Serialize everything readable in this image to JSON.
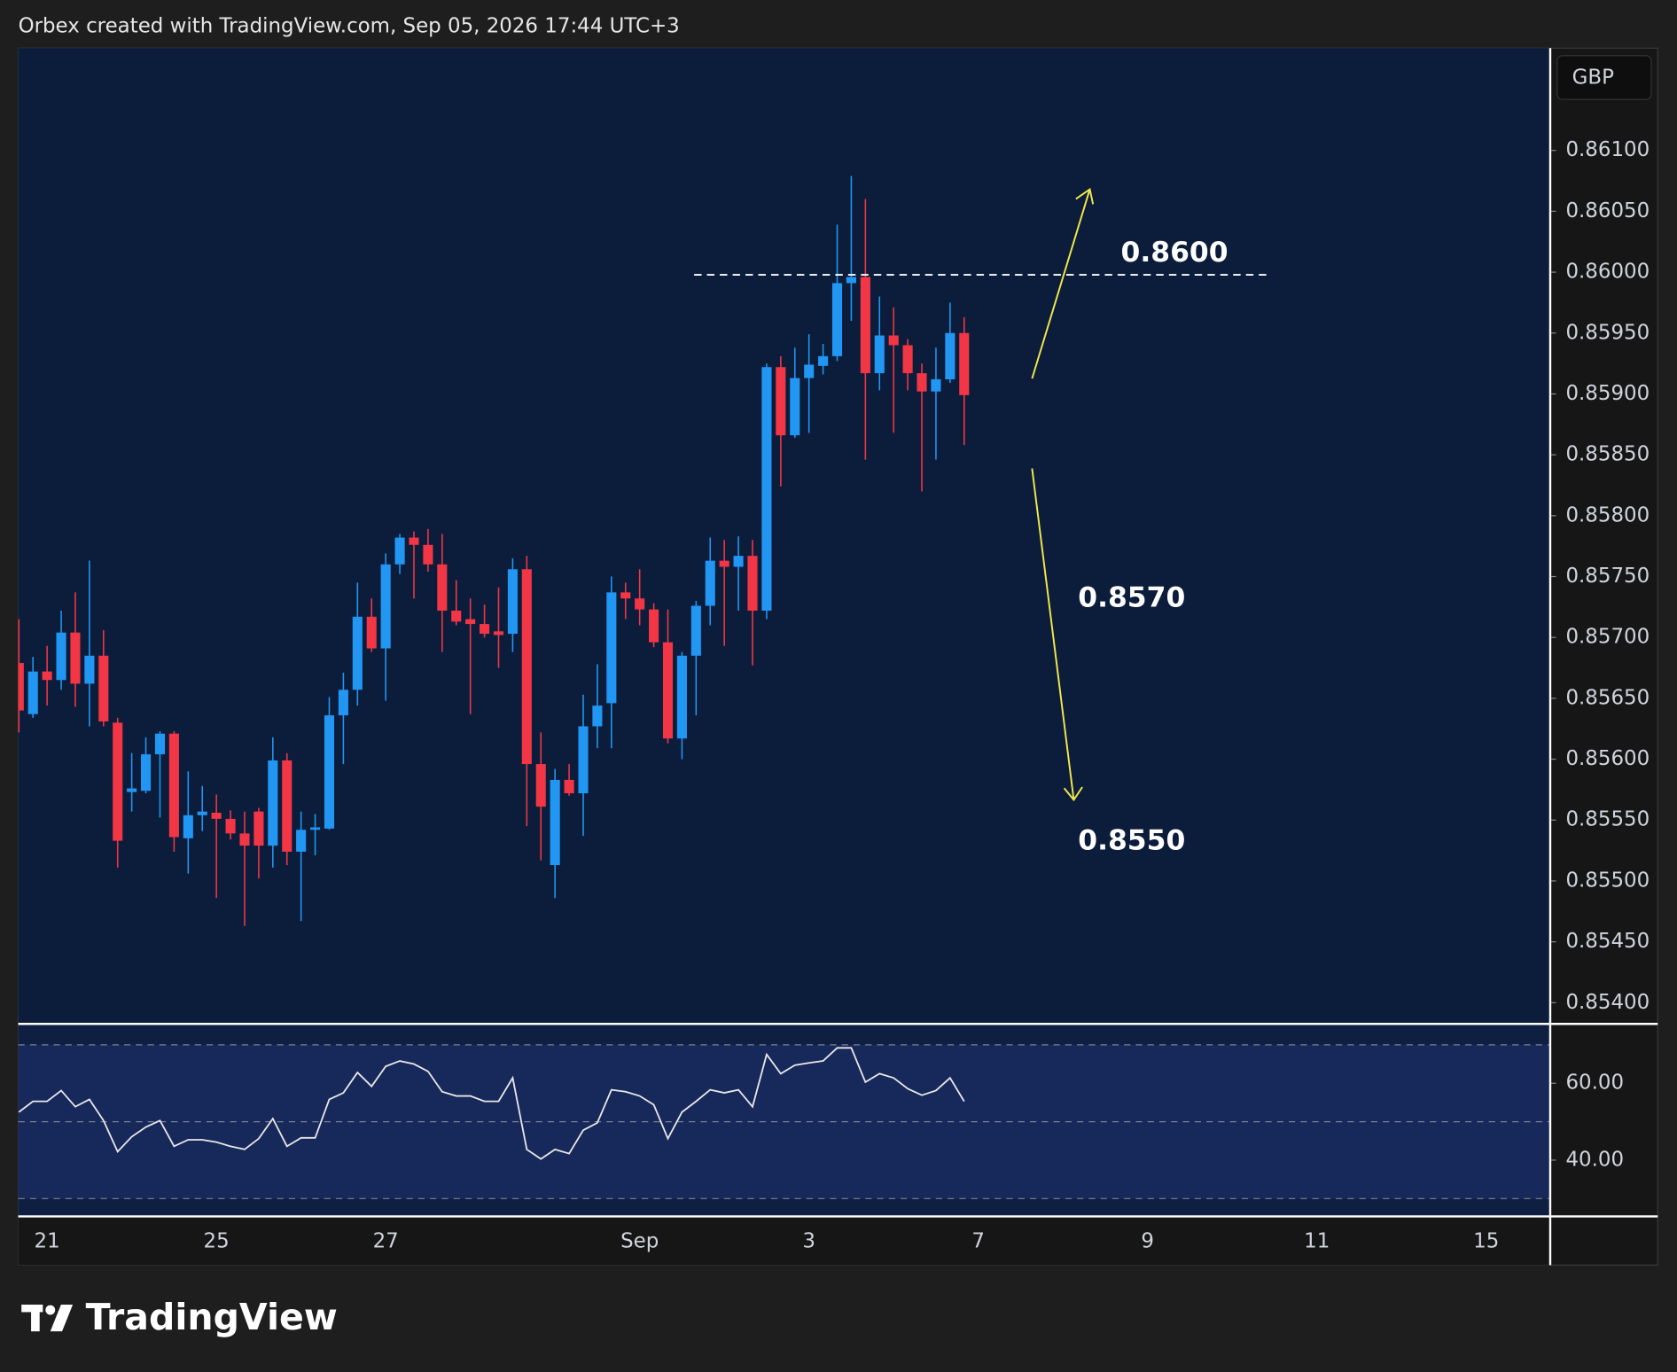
{
  "header": "Orbex created with TradingView.com, Sep 05, 2026 17:44 UTC+3",
  "logo": "TradingView",
  "chart_data": [
    {
      "type": "candlestick",
      "currency": "GBP",
      "categories": [
        null,
        null,
        "21",
        null,
        null,
        null,
        null,
        null,
        null,
        null,
        null,
        null,
        null,
        null,
        "25",
        null,
        null,
        null,
        null,
        null,
        null,
        null,
        null,
        null,
        null,
        null,
        "27",
        null,
        null,
        null,
        null,
        null,
        null,
        null,
        null,
        null,
        null,
        null,
        null,
        null,
        null,
        null,
        null,
        null,
        "Sep",
        null,
        null,
        null,
        null,
        null,
        null,
        null,
        null,
        null,
        null,
        null,
        "3",
        null,
        null,
        null,
        null,
        null,
        null,
        null,
        null,
        null,
        null,
        null,
        "7",
        null,
        null,
        null,
        null,
        null,
        null,
        null,
        null,
        null,
        null,
        null,
        "9",
        null,
        null,
        null,
        null,
        null,
        null,
        null,
        null,
        null,
        null,
        null,
        "11",
        null,
        null,
        null,
        null,
        null,
        null,
        null,
        null,
        null,
        null,
        null,
        "15",
        null,
        null,
        null,
        null
      ],
      "open": [
        0.85679,
        0.85637,
        0.85672,
        0.85665,
        0.85704,
        0.85662,
        0.85685,
        0.8563,
        0.85573,
        0.85574,
        0.85604,
        0.85621,
        0.85535,
        0.85554,
        0.85556,
        0.85551,
        0.85539,
        0.85557,
        0.85529,
        0.85599,
        0.85524,
        0.85542,
        0.85543,
        0.85636,
        0.85657,
        0.85717,
        0.85691,
        0.8576,
        0.85782,
        0.85776,
        0.8576,
        0.85722,
        0.85715,
        0.85711,
        0.85705,
        0.85703,
        0.85756,
        0.85596,
        0.85513,
        0.85583,
        0.85572,
        0.85627,
        0.85646,
        0.85737,
        0.85732,
        0.85723,
        0.85696,
        0.85617,
        0.85685,
        0.85726,
        0.85763,
        0.85758,
        0.85767,
        0.85722,
        0.85922,
        0.85866,
        0.85913,
        0.85923,
        0.85931,
        0.85991,
        0.85996,
        0.85917,
        0.85948,
        0.8594,
        0.85917,
        0.85902,
        0.85912,
        0.8595,
        null,
        null,
        null,
        null,
        null,
        null,
        null,
        null,
        null,
        null,
        null,
        null,
        null,
        null,
        null,
        null,
        null,
        null,
        null,
        null,
        null,
        null,
        null,
        null,
        null,
        null,
        null,
        null,
        null,
        null,
        null,
        null,
        null,
        null,
        null,
        null,
        null,
        null,
        null,
        null,
        null
      ],
      "high": [
        0.85715,
        0.85684,
        0.85693,
        0.85722,
        0.85737,
        0.85763,
        0.85706,
        0.85634,
        0.85605,
        0.85618,
        0.85623,
        0.85623,
        0.8559,
        0.85578,
        0.85571,
        0.85558,
        0.85557,
        0.8556,
        0.85618,
        0.85605,
        0.85557,
        0.85555,
        0.85651,
        0.85671,
        0.85745,
        0.85732,
        0.85769,
        0.85785,
        0.85787,
        0.85789,
        0.85785,
        0.85747,
        0.85732,
        0.85727,
        0.85741,
        0.85765,
        0.85767,
        0.85622,
        0.85592,
        0.85596,
        0.85653,
        0.85678,
        0.8575,
        0.85745,
        0.85756,
        0.85728,
        0.85723,
        0.85688,
        0.8573,
        0.85782,
        0.8578,
        0.85783,
        0.8578,
        0.85925,
        0.85931,
        0.85938,
        0.85949,
        0.85941,
        0.86039,
        0.86079,
        0.8606,
        0.8598,
        0.85971,
        0.85945,
        0.85925,
        0.85938,
        0.85975,
        0.85963,
        null,
        null,
        null,
        null,
        null,
        null,
        null,
        null,
        null,
        null,
        null,
        null,
        null,
        null,
        null,
        null,
        null,
        null,
        null,
        null,
        null,
        null,
        null,
        null,
        null,
        null,
        null,
        null,
        null,
        null,
        null,
        null,
        null,
        null,
        null,
        null,
        null,
        null,
        null,
        null,
        null
      ],
      "low": [
        0.85622,
        0.85634,
        0.85644,
        0.85657,
        0.85643,
        0.85627,
        0.85627,
        0.85511,
        0.85557,
        0.85572,
        0.85552,
        0.85524,
        0.85506,
        0.85541,
        0.85486,
        0.85534,
        0.85463,
        0.85502,
        0.85511,
        0.85513,
        0.85467,
        0.85521,
        0.85542,
        0.85596,
        0.85644,
        0.85688,
        0.85648,
        0.85752,
        0.85732,
        0.85754,
        0.85688,
        0.8571,
        0.85637,
        0.857,
        0.85675,
        0.85688,
        0.85545,
        0.85517,
        0.85486,
        0.8557,
        0.85537,
        0.85609,
        0.85609,
        0.85715,
        0.8571,
        0.85692,
        0.85613,
        0.856,
        0.85636,
        0.8571,
        0.85693,
        0.85722,
        0.85677,
        0.85715,
        0.85824,
        0.85864,
        0.85868,
        0.85916,
        0.85927,
        0.8596,
        0.85846,
        0.85903,
        0.85868,
        0.85903,
        0.8582,
        0.85846,
        0.85909,
        0.85858,
        null,
        null,
        null,
        null,
        null,
        null,
        null,
        null,
        null,
        null,
        null,
        null,
        null,
        null,
        null,
        null,
        null,
        null,
        null,
        null,
        null,
        null,
        null,
        null,
        null,
        null,
        null,
        null,
        null,
        null,
        null,
        null,
        null,
        null,
        null,
        null,
        null,
        null,
        null,
        null,
        null
      ],
      "close": [
        0.8564,
        0.85672,
        0.85665,
        0.85704,
        0.85662,
        0.85685,
        0.85631,
        0.85533,
        0.85576,
        0.85604,
        0.85621,
        0.85536,
        0.85554,
        0.85557,
        0.85551,
        0.85539,
        0.85529,
        0.85529,
        0.85599,
        0.85524,
        0.85542,
        0.85544,
        0.85636,
        0.85657,
        0.85717,
        0.85691,
        0.8576,
        0.85782,
        0.85776,
        0.8576,
        0.85722,
        0.85713,
        0.85711,
        0.85703,
        0.85702,
        0.85756,
        0.85596,
        0.85561,
        0.85583,
        0.85572,
        0.85627,
        0.85644,
        0.85737,
        0.85732,
        0.85723,
        0.85696,
        0.85617,
        0.85685,
        0.85726,
        0.85763,
        0.85758,
        0.85767,
        0.85722,
        0.85922,
        0.85866,
        0.85913,
        0.85924,
        0.85931,
        0.85991,
        0.85996,
        0.85917,
        0.85948,
        0.8594,
        0.85917,
        0.85902,
        0.85912,
        0.8595,
        0.85899,
        null,
        null,
        null,
        null,
        null,
        null,
        null,
        null,
        null,
        null,
        null,
        null,
        null,
        null,
        null,
        null,
        null,
        null,
        null,
        null,
        null,
        null,
        null,
        null,
        null,
        null,
        null,
        null,
        null,
        null,
        null,
        null,
        null,
        null,
        null,
        null,
        null,
        null,
        null,
        null,
        null
      ],
      "up_color": "#2196f3",
      "down_color": "#f23645",
      "ylim": [
        0.85383,
        0.86184
      ],
      "yticks": [
        {
          "value": 0.861,
          "label": "0.86100"
        },
        {
          "value": 0.8605,
          "label": "0.86050"
        },
        {
          "value": 0.86,
          "label": "0.86000"
        },
        {
          "value": 0.8595,
          "label": "0.85950"
        },
        {
          "value": 0.859,
          "label": "0.85900"
        },
        {
          "value": 0.8585,
          "label": "0.85850"
        },
        {
          "value": 0.858,
          "label": "0.85800"
        },
        {
          "value": 0.8575,
          "label": "0.85750"
        },
        {
          "value": 0.857,
          "label": "0.85700"
        },
        {
          "value": 0.8565,
          "label": "0.85650"
        },
        {
          "value": 0.856,
          "label": "0.85600"
        },
        {
          "value": 0.8555,
          "label": "0.85550"
        },
        {
          "value": 0.855,
          "label": "0.85500"
        },
        {
          "value": 0.8545,
          "label": "0.85450"
        },
        {
          "value": 0.854,
          "label": "0.85400"
        }
      ],
      "annotations": [
        "0.8600",
        "0.8570",
        "0.8550"
      ]
    },
    {
      "type": "line",
      "color": "#e8e8e8",
      "values": [
        52.5,
        55.3,
        55.3,
        58.1,
        53.9,
        55.8,
        50.3,
        42.2,
        46.1,
        48.6,
        50.3,
        43.6,
        45.3,
        45.3,
        44.7,
        43.6,
        42.8,
        45.6,
        50.8,
        43.6,
        45.8,
        45.8,
        55.8,
        57.5,
        62.8,
        59.2,
        64.4,
        65.8,
        65.0,
        63.1,
        57.8,
        56.7,
        56.7,
        55.3,
        55.3,
        61.4,
        42.8,
        40.3,
        42.8,
        41.7,
        47.8,
        49.7,
        58.3,
        57.8,
        56.7,
        54.4,
        45.6,
        52.5,
        55.3,
        58.3,
        57.5,
        58.3,
        53.9,
        67.5,
        62.5,
        64.7,
        65.3,
        65.8,
        69.2,
        69.2,
        60.3,
        62.5,
        61.4,
        58.6,
        56.9,
        58.1,
        61.4,
        55.3,
        null,
        null,
        null,
        null,
        null,
        null,
        null,
        null,
        null,
        null,
        null,
        null,
        null,
        null,
        null,
        null,
        null,
        null,
        null,
        null,
        null,
        null,
        null,
        null,
        null,
        null,
        null,
        null,
        null,
        null,
        null,
        null,
        null,
        null,
        null,
        null,
        null,
        null,
        null,
        null,
        null
      ],
      "ylim": [
        25.5,
        75.3
      ],
      "yticks": [
        {
          "value": 60,
          "label": "60.00"
        },
        {
          "value": 40,
          "label": "40.00"
        }
      ],
      "levels": [
        70,
        50,
        30
      ]
    }
  ]
}
